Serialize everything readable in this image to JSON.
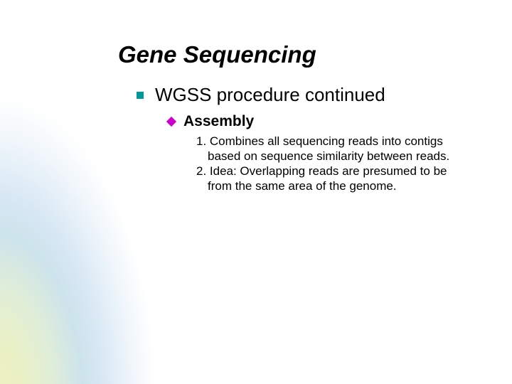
{
  "slide": {
    "title": "Gene Sequencing",
    "level1": {
      "text": "WGSS procedure continued",
      "bullet_color": "#009999"
    },
    "level2": {
      "text": "Assembly",
      "bullet_color": "#cc00cc"
    },
    "numbered": {
      "item1": "1. Combines all sequencing reads into contigs based on sequence similarity between reads.",
      "item2": "2. Idea: Overlapping reads are presumed to be from the same area of the genome."
    },
    "styling": {
      "title_fontsize": 33,
      "title_color": "#000000",
      "title_weight": "bold",
      "title_style": "italic",
      "level1_fontsize": 26,
      "level1_color": "#000000",
      "level2_fontsize": 21,
      "level2_color": "#000000",
      "level2_weight": "bold",
      "body_fontsize": 17,
      "body_color": "#000000",
      "background_color": "#ffffff",
      "gradient_colors": [
        "#ecf2bd",
        "#cde3ec",
        "#ffffff"
      ]
    }
  }
}
